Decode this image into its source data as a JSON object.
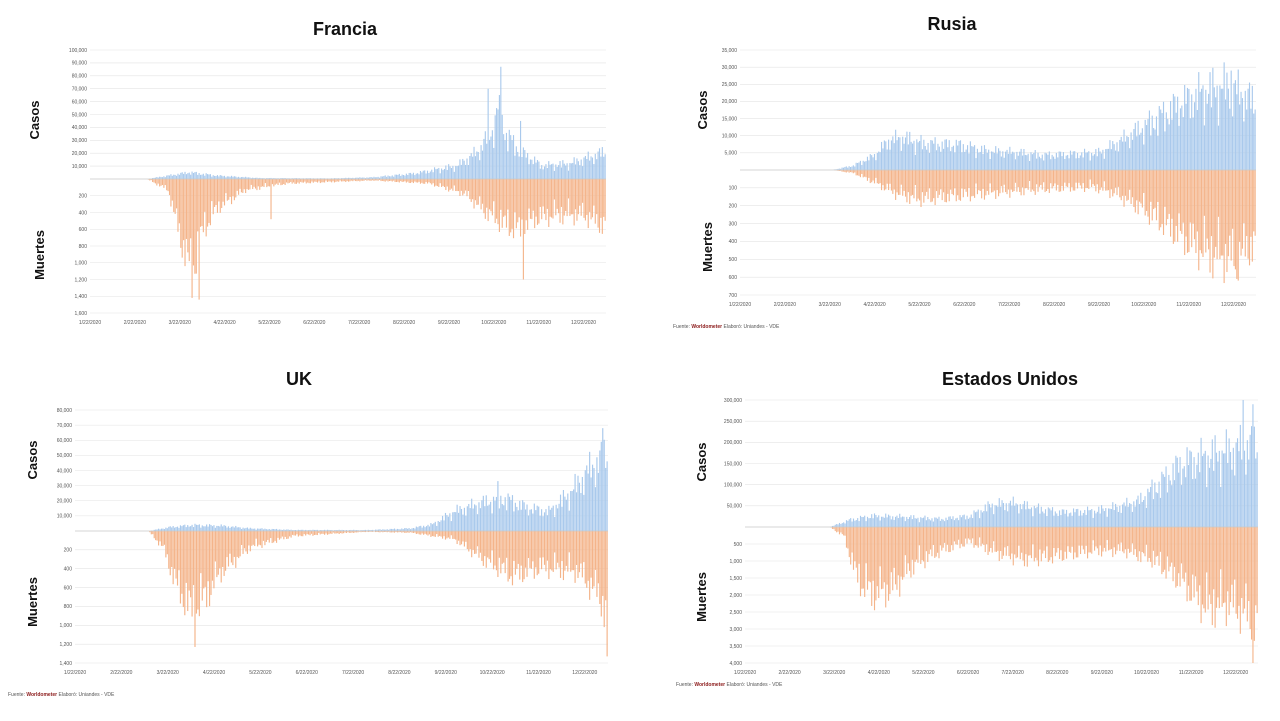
{
  "colors": {
    "cases": "#a9c9ec",
    "deaths": "#f4b48a",
    "grid": "#e3e3e3"
  },
  "source": {
    "prefix": "Fuente:",
    "brand": "Worldometer",
    "suffix": "Elaboró: Uniandes - VDE"
  },
  "chart_data": [
    {
      "type": "bar",
      "title": "Francia",
      "ylabel_top": "Casos",
      "ylabel_bottom": "Muertes",
      "x_ticks": [
        "1/22/2020",
        "2/22/2020",
        "3/22/2020",
        "4/22/2020",
        "5/22/2020",
        "6/22/2020",
        "7/22/2020",
        "8/22/2020",
        "9/22/2020",
        "10/22/2020",
        "11/22/2020",
        "12/22/2020"
      ],
      "cases_ticks": [
        "10,000",
        "20,000",
        "30,000",
        "40,000",
        "50,000",
        "60,000",
        "70,000",
        "80,000",
        "90,000",
        "100,000"
      ],
      "deaths_ticks": [
        "200",
        "400",
        "600",
        "800",
        "1,000",
        "1,200",
        "1,400",
        "1,600"
      ],
      "cases_max": 100000,
      "deaths_max": 1600,
      "cases_key": [
        [
          0,
          0
        ],
        [
          40,
          0
        ],
        [
          55,
          3000
        ],
        [
          70,
          6000
        ],
        [
          90,
          3000
        ],
        [
          120,
          800
        ],
        [
          170,
          500
        ],
        [
          200,
          1500
        ],
        [
          230,
          5000
        ],
        [
          260,
          12000
        ],
        [
          275,
          25000
        ],
        [
          285,
          45000
        ],
        [
          290,
          60000
        ],
        [
          295,
          40000
        ],
        [
          305,
          25000
        ],
        [
          320,
          12000
        ],
        [
          340,
          14000
        ],
        [
          350,
          18000
        ],
        [
          360,
          22000
        ],
        [
          365,
          25000
        ]
      ],
      "deaths_key": [
        [
          0,
          0
        ],
        [
          40,
          0
        ],
        [
          55,
          150
        ],
        [
          65,
          900
        ],
        [
          72,
          1300
        ],
        [
          80,
          700
        ],
        [
          90,
          400
        ],
        [
          110,
          150
        ],
        [
          140,
          60
        ],
        [
          200,
          20
        ],
        [
          240,
          60
        ],
        [
          265,
          200
        ],
        [
          280,
          450
        ],
        [
          295,
          650
        ],
        [
          305,
          700
        ],
        [
          315,
          550
        ],
        [
          330,
          500
        ],
        [
          350,
          500
        ],
        [
          365,
          650
        ]
      ],
      "cases_spikes": [
        [
          282,
          70000
        ],
        [
          291,
          87000
        ],
        [
          305,
          45000
        ],
        [
          288,
          55000
        ]
      ],
      "deaths_spikes": [
        [
          72,
          1420
        ],
        [
          77,
          1440
        ],
        [
          307,
          1200
        ],
        [
          128,
          480
        ]
      ],
      "show_source": false
    },
    {
      "type": "bar",
      "title": "Rusia",
      "ylabel_top": "Casos",
      "ylabel_bottom": "Muertes",
      "x_ticks": [
        "1/22/2020",
        "2/22/2020",
        "3/22/2020",
        "4/22/2020",
        "5/22/2020",
        "6/22/2020",
        "7/22/2020",
        "8/22/2020",
        "9/22/2020",
        "10/22/2020",
        "11/22/2020",
        "12/22/2020"
      ],
      "cases_ticks": [
        "5,000",
        "10,000",
        "15,000",
        "20,000",
        "25,000",
        "30,000",
        "35,000"
      ],
      "deaths_ticks": [
        "100",
        "200",
        "300",
        "400",
        "500",
        "600",
        "700"
      ],
      "cases_max": 35000,
      "deaths_max": 700,
      "cases_key": [
        [
          0,
          0
        ],
        [
          65,
          0
        ],
        [
          80,
          1500
        ],
        [
          95,
          5000
        ],
        [
          105,
          10000
        ],
        [
          115,
          11000
        ],
        [
          130,
          9000
        ],
        [
          155,
          8500
        ],
        [
          175,
          6500
        ],
        [
          200,
          5800
        ],
        [
          215,
          5000
        ],
        [
          240,
          5500
        ],
        [
          255,
          6000
        ],
        [
          270,
          10000
        ],
        [
          290,
          16000
        ],
        [
          310,
          22000
        ],
        [
          330,
          27000
        ],
        [
          345,
          28500
        ],
        [
          355,
          26000
        ],
        [
          365,
          23000
        ]
      ],
      "deaths_key": [
        [
          0,
          0
        ],
        [
          65,
          0
        ],
        [
          80,
          20
        ],
        [
          95,
          80
        ],
        [
          110,
          150
        ],
        [
          125,
          190
        ],
        [
          140,
          180
        ],
        [
          165,
          160
        ],
        [
          190,
          140
        ],
        [
          220,
          120
        ],
        [
          250,
          110
        ],
        [
          265,
          150
        ],
        [
          285,
          250
        ],
        [
          305,
          380
        ],
        [
          320,
          480
        ],
        [
          335,
          560
        ],
        [
          350,
          580
        ],
        [
          365,
          480
        ]
      ],
      "cases_spikes": [
        [
          348,
          29000
        ]
      ],
      "deaths_spikes": [
        [
          352,
          610
        ]
      ],
      "show_source": true
    },
    {
      "type": "bar",
      "title": "UK",
      "ylabel_top": "Casos",
      "ylabel_bottom": "Muertes",
      "x_ticks": [
        "1/22/2020",
        "2/22/2020",
        "3/22/2020",
        "4/22/2020",
        "5/22/2020",
        "6/22/2020",
        "7/22/2020",
        "8/22/2020",
        "9/22/2020",
        "10/22/2020",
        "11/22/2020",
        "12/22/2020"
      ],
      "cases_ticks": [
        "10,000",
        "20,000",
        "30,000",
        "40,000",
        "50,000",
        "60,000",
        "70,000",
        "80,000"
      ],
      "deaths_ticks": [
        "200",
        "400",
        "600",
        "800",
        "1,000",
        "1,200",
        "1,400"
      ],
      "cases_max": 80000,
      "deaths_max": 1400,
      "cases_key": [
        [
          0,
          0
        ],
        [
          50,
          0
        ],
        [
          65,
          3000
        ],
        [
          80,
          4500
        ],
        [
          100,
          4000
        ],
        [
          120,
          2000
        ],
        [
          150,
          800
        ],
        [
          200,
          700
        ],
        [
          230,
          2000
        ],
        [
          245,
          5000
        ],
        [
          260,
          15000
        ],
        [
          280,
          22000
        ],
        [
          295,
          25000
        ],
        [
          310,
          18000
        ],
        [
          325,
          15000
        ],
        [
          340,
          30000
        ],
        [
          355,
          50000
        ],
        [
          365,
          60000
        ]
      ],
      "deaths_key": [
        [
          0,
          0
        ],
        [
          50,
          0
        ],
        [
          60,
          200
        ],
        [
          70,
          700
        ],
        [
          80,
          1000
        ],
        [
          90,
          800
        ],
        [
          100,
          500
        ],
        [
          120,
          200
        ],
        [
          150,
          60
        ],
        [
          200,
          10
        ],
        [
          230,
          20
        ],
        [
          260,
          100
        ],
        [
          280,
          350
        ],
        [
          300,
          550
        ],
        [
          320,
          450
        ],
        [
          345,
          500
        ],
        [
          360,
          800
        ],
        [
          365,
          1100
        ]
      ],
      "cases_spikes": [
        [
          362,
          68000
        ],
        [
          290,
          33000
        ]
      ],
      "deaths_spikes": [
        [
          365,
          1330
        ],
        [
          82,
          1230
        ]
      ],
      "show_source": true
    },
    {
      "type": "bar",
      "title": "Estados Unidos",
      "ylabel_top": "Casos",
      "ylabel_bottom": "Muertes",
      "x_ticks": [
        "1/22/2020",
        "2/22/2020",
        "3/22/2020",
        "4/22/2020",
        "5/22/2020",
        "6/22/2020",
        "7/22/2020",
        "8/22/2020",
        "9/22/2020",
        "10/22/2020",
        "11/22/2020",
        "12/22/2020"
      ],
      "cases_ticks": [
        "50,000",
        "100,000",
        "150,000",
        "200,000",
        "250,000",
        "300,000"
      ],
      "deaths_ticks": [
        "500",
        "1,000",
        "1,500",
        "2,000",
        "2,500",
        "3,000",
        "3,500",
        "4,000"
      ],
      "cases_max": 300000,
      "deaths_max": 4000,
      "cases_key": [
        [
          0,
          0
        ],
        [
          60,
          0
        ],
        [
          75,
          20000
        ],
        [
          90,
          30000
        ],
        [
          110,
          28000
        ],
        [
          140,
          22000
        ],
        [
          160,
          30000
        ],
        [
          175,
          60000
        ],
        [
          190,
          65000
        ],
        [
          210,
          50000
        ],
        [
          225,
          40000
        ],
        [
          250,
          45000
        ],
        [
          265,
          55000
        ],
        [
          280,
          70000
        ],
        [
          295,
          120000
        ],
        [
          310,
          170000
        ],
        [
          325,
          190000
        ],
        [
          345,
          210000
        ],
        [
          365,
          230000
        ]
      ],
      "deaths_key": [
        [
          0,
          0
        ],
        [
          60,
          0
        ],
        [
          70,
          300
        ],
        [
          80,
          1800
        ],
        [
          90,
          2300
        ],
        [
          105,
          2100
        ],
        [
          120,
          1300
        ],
        [
          140,
          800
        ],
        [
          160,
          500
        ],
        [
          180,
          900
        ],
        [
          200,
          1100
        ],
        [
          220,
          1000
        ],
        [
          250,
          800
        ],
        [
          270,
          800
        ],
        [
          290,
          1100
        ],
        [
          310,
          1800
        ],
        [
          330,
          2800
        ],
        [
          345,
          2600
        ],
        [
          355,
          2900
        ],
        [
          365,
          3300
        ]
      ],
      "cases_spikes": [
        [
          355,
          300000
        ],
        [
          362,
          290000
        ]
      ],
      "deaths_spikes": [
        [
          362,
          4300
        ]
      ],
      "show_source": true
    }
  ]
}
